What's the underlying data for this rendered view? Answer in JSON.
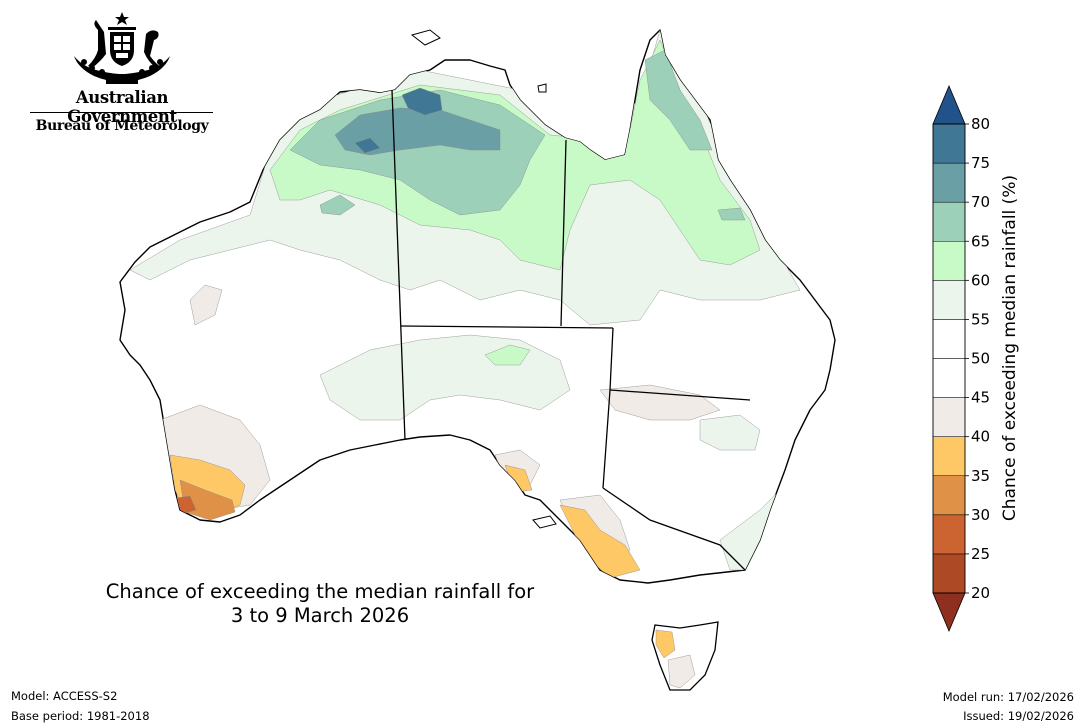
{
  "branding": {
    "org_line1": "Australian Government",
    "org_line2": "Bureau of Meteorology",
    "crest_icon": "coat-of-arms-icon"
  },
  "map": {
    "title_line1": "Chance of exceeding the median rainfall for",
    "title_line2": "3 to 9 March 2026",
    "region": "Australia",
    "state_borders": true,
    "regional_signals": [
      {
        "region": "Top End (NT north)",
        "level_percent": "70-75"
      },
      {
        "region": "Kimberley (WA north)",
        "level_percent": "65-75"
      },
      {
        "region": "Cape York (QLD north)",
        "level_percent": "60-70"
      },
      {
        "region": "South-west WA",
        "level_percent": "25-40"
      },
      {
        "region": "South-east SA and western Victoria",
        "level_percent": "35-40"
      },
      {
        "region": "Western Tasmania",
        "level_percent": "35-40"
      }
    ]
  },
  "colorbar": {
    "label": "Chance of exceeding median rainfall (%)",
    "ticks": [
      "20",
      "25",
      "30",
      "35",
      "40",
      "45",
      "50",
      "55",
      "60",
      "65",
      "70",
      "75",
      "80"
    ],
    "bands": [
      {
        "from": 20,
        "to": 25,
        "color": "#ad4925"
      },
      {
        "from": 25,
        "to": 30,
        "color": "#cc6431"
      },
      {
        "from": 30,
        "to": 35,
        "color": "#e09148"
      },
      {
        "from": 35,
        "to": 40,
        "color": "#fec866"
      },
      {
        "from": 40,
        "to": 45,
        "color": "#f0ebe6"
      },
      {
        "from": 45,
        "to": 50,
        "color": "#ffffff"
      },
      {
        "from": 50,
        "to": 55,
        "color": "#ffffff"
      },
      {
        "from": 55,
        "to": 60,
        "color": "#ebf5eb"
      },
      {
        "from": 60,
        "to": 65,
        "color": "#c8fac8"
      },
      {
        "from": 65,
        "to": 70,
        "color": "#9cd0b9"
      },
      {
        "from": 70,
        "to": 75,
        "color": "#6b9fa6"
      },
      {
        "from": 75,
        "to": 80,
        "color": "#407795"
      }
    ],
    "low_extend_color": "#8f2f1f",
    "high_extend_color": "#21528a"
  },
  "footer": {
    "model": "Model: ACCESS-S2",
    "base_period": "Base period: 1981-2018",
    "model_run": "Model run: 17/02/2026",
    "issued": "Issued: 19/02/2026"
  }
}
